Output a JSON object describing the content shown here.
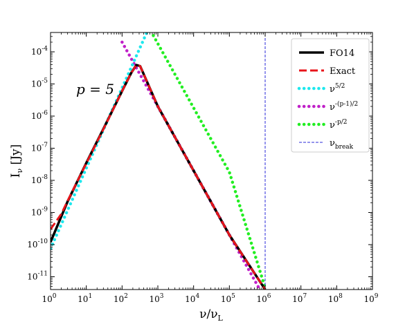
{
  "chart_data": {
    "type": "line",
    "xscale": "log",
    "yscale": "log",
    "xlim": [
      1,
      1000000000
    ],
    "ylim": [
      4e-12,
      0.0004
    ],
    "xlabel": "ν/ν_L",
    "ylabel": "I_ν [Jy]",
    "xticks": [
      {
        "value": 1,
        "label": "10^0"
      },
      {
        "value": 10,
        "label": "10^1"
      },
      {
        "value": 100,
        "label": "10^2"
      },
      {
        "value": 1000,
        "label": "10^3"
      },
      {
        "value": 10000,
        "label": "10^4"
      },
      {
        "value": 100000,
        "label": "10^5"
      },
      {
        "value": 1000000,
        "label": "10^6"
      },
      {
        "value": 10000000,
        "label": "10^7"
      },
      {
        "value": 100000000,
        "label": "10^8"
      },
      {
        "value": 1000000000,
        "label": "10^9"
      }
    ],
    "yticks": [
      {
        "value": 1e-11,
        "label": "10^-11"
      },
      {
        "value": 1e-10,
        "label": "10^-10"
      },
      {
        "value": 1e-09,
        "label": "10^-9"
      },
      {
        "value": 1e-08,
        "label": "10^-8"
      },
      {
        "value": 1e-07,
        "label": "10^-7"
      },
      {
        "value": 1e-06,
        "label": "10^-6"
      },
      {
        "value": 1e-05,
        "label": "10^-5"
      },
      {
        "value": 0.0001,
        "label": "10^-4"
      }
    ],
    "annotation": "p = 5",
    "grid": false,
    "legend_position": "top-right",
    "series": [
      {
        "name": "FO14",
        "color": "#000000",
        "style": "solid",
        "x": [
          1,
          3,
          10,
          30,
          100,
          180,
          250,
          320,
          1000,
          10000,
          100000,
          1000000
        ],
        "y": [
          1.2e-10,
          2.2e-09,
          3.5e-08,
          4e-07,
          6e-06,
          2.2e-05,
          3.9e-05,
          3.6e-05,
          2e-06,
          2e-08,
          2e-10,
          4e-12
        ]
      },
      {
        "name": "Exact",
        "color": "#e8141a",
        "style": "dashed",
        "x": [
          1,
          2,
          3,
          10,
          30,
          100,
          180,
          250,
          320,
          1000,
          10000,
          100000,
          1000000
        ],
        "y": [
          3e-10,
          9e-10,
          2.3e-09,
          3.4e-08,
          3.9e-07,
          6e-06,
          2.2e-05,
          3.9e-05,
          3.6e-05,
          2e-06,
          2e-08,
          2e-10,
          4e-12
        ]
      },
      {
        "name": "ν^{5/2}",
        "color": "#1ee8ee",
        "style": "dotted",
        "x": [
          1,
          10,
          100,
          1000
        ],
        "y": [
          7.5e-11,
          2.4e-08,
          7.5e-06,
          0.00237
        ]
      },
      {
        "name": "ν^{-(p-1)/2}",
        "color": "#c020c8",
        "style": "dotted",
        "x": [
          100,
          1000,
          10000,
          100000,
          1000000
        ],
        "y": [
          0.0002,
          2e-06,
          2e-08,
          2e-10,
          2e-12
        ]
      },
      {
        "name": "ν^{-p/2}",
        "color": "#22ee22",
        "style": "dotted",
        "x": [
          100,
          1000,
          10000,
          100000,
          1000000
        ],
        "y": [
          0.0173,
          0.00018,
          1.8e-06,
          1.8e-08,
          4.5e-12
        ]
      },
      {
        "name": "ν_break",
        "color": "#2a2ad8",
        "style": "thin-dashed-vertical",
        "x": [
          1000000,
          1000000
        ],
        "y": [
          4e-12,
          0.0004
        ]
      }
    ]
  }
}
